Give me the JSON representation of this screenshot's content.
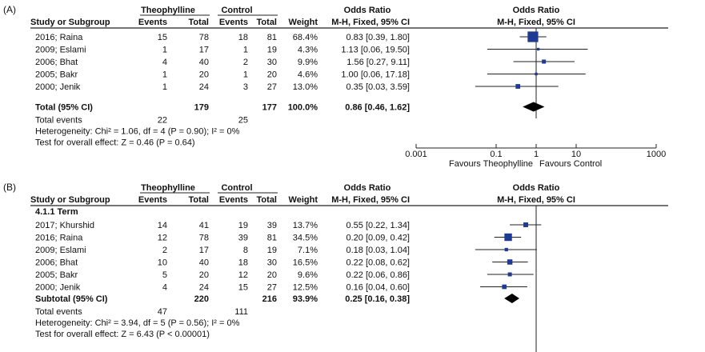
{
  "colors": {
    "text": "#111111",
    "line": "#222222",
    "marker": "#1f3a93",
    "diamond": "#000000"
  },
  "chart_data": [
    {
      "type": "forest",
      "panel_label": "(A)",
      "header": {
        "group1": "Theophylline",
        "group2": "Control",
        "study_col": "Study or Subgroup",
        "events": "Events",
        "total": "Total",
        "weight": "Weight",
        "or_title": "Odds Ratio",
        "or_method": "M-H, Fixed, 95% CI",
        "plot_title": "Odds Ratio",
        "plot_method": "M-H, Fixed, 95% CI"
      },
      "subgroup_label": "",
      "studies": [
        {
          "name": "2016; Raina",
          "e1": "15",
          "t1": "78",
          "e2": "18",
          "t2": "81",
          "weight": "68.4%",
          "ci_text": "0.83 [0.39, 1.80]",
          "or": 0.83,
          "lo": 0.39,
          "hi": 1.8,
          "w": 68.4
        },
        {
          "name": "2009; Eslami",
          "e1": "1",
          "t1": "17",
          "e2": "1",
          "t2": "19",
          "weight": "4.3%",
          "ci_text": "1.13 [0.06, 19.50]",
          "or": 1.13,
          "lo": 0.06,
          "hi": 19.5,
          "w": 4.3
        },
        {
          "name": "2006; Bhat",
          "e1": "4",
          "t1": "40",
          "e2": "2",
          "t2": "30",
          "weight": "9.9%",
          "ci_text": "1.56 [0.27, 9.11]",
          "or": 1.56,
          "lo": 0.27,
          "hi": 9.11,
          "w": 9.9
        },
        {
          "name": "2005; Bakr",
          "e1": "1",
          "t1": "20",
          "e2": "1",
          "t2": "20",
          "weight": "4.6%",
          "ci_text": "1.00 [0.06, 17.18]",
          "or": 1.0,
          "lo": 0.06,
          "hi": 17.18,
          "w": 4.6
        },
        {
          "name": "2000; Jenik",
          "e1": "1",
          "t1": "24",
          "e2": "3",
          "t2": "27",
          "weight": "13.0%",
          "ci_text": "0.35 [0.03, 3.59]",
          "or": 0.35,
          "lo": 0.03,
          "hi": 3.59,
          "w": 13.0
        }
      ],
      "total": {
        "label": "Total (95% CI)",
        "t1": "179",
        "t2": "177",
        "weight": "100.0%",
        "ci_text": "0.86 [0.46, 1.62]",
        "or": 0.86,
        "lo": 0.46,
        "hi": 1.62
      },
      "events": {
        "label": "Total events",
        "e1": "22",
        "e2": "25"
      },
      "heterogeneity": "Heterogeneity: Chi² = 1.06, df = 4 (P = 0.90); I² = 0%",
      "overall": "Test for overall effect: Z = 0.46 (P = 0.64)",
      "axis": {
        "scale": "log",
        "range": [
          0.001,
          1000
        ],
        "ticks": [
          0.001,
          0.1,
          1,
          10,
          1000
        ],
        "tick_labels": [
          "0.001",
          "0.1",
          "1",
          "10",
          "1000"
        ],
        "left_label": "Favours Theophylline",
        "right_label": "Favours Control"
      }
    },
    {
      "type": "forest",
      "panel_label": "(B)",
      "header": {
        "group1": "Theophylline",
        "group2": "Control",
        "study_col": "Study or Subgroup",
        "events": "Events",
        "total": "Total",
        "weight": "Weight",
        "or_title": "Odds Ratio",
        "or_method": "M-H, Fixed, 95% CI",
        "plot_title": "Odds Ratio",
        "plot_method": "M-H, Fixed, 95% CI"
      },
      "subgroup_label": "4.1.1 Term",
      "studies": [
        {
          "name": "2017; Khurshid",
          "e1": "14",
          "t1": "41",
          "e2": "19",
          "t2": "39",
          "weight": "13.7%",
          "ci_text": "0.55 [0.22, 1.34]",
          "or": 0.55,
          "lo": 0.22,
          "hi": 1.34,
          "w": 13.7
        },
        {
          "name": "2016; Raina",
          "e1": "12",
          "t1": "78",
          "e2": "39",
          "t2": "81",
          "weight": "34.5%",
          "ci_text": "0.20 [0.09, 0.42]",
          "or": 0.2,
          "lo": 0.09,
          "hi": 0.42,
          "w": 34.5
        },
        {
          "name": "2009; Eslami",
          "e1": "2",
          "t1": "17",
          "e2": "8",
          "t2": "19",
          "weight": "7.1%",
          "ci_text": "0.18 [0.03, 1.04]",
          "or": 0.18,
          "lo": 0.03,
          "hi": 1.04,
          "w": 7.1
        },
        {
          "name": "2006; Bhat",
          "e1": "10",
          "t1": "40",
          "e2": "18",
          "t2": "30",
          "weight": "16.5%",
          "ci_text": "0.22 [0.08, 0.62]",
          "or": 0.22,
          "lo": 0.08,
          "hi": 0.62,
          "w": 16.5
        },
        {
          "name": "2005; Bakr",
          "e1": "5",
          "t1": "20",
          "e2": "12",
          "t2": "20",
          "weight": "9.6%",
          "ci_text": "0.22 [0.06, 0.86]",
          "or": 0.22,
          "lo": 0.06,
          "hi": 0.86,
          "w": 9.6
        },
        {
          "name": "2000; Jenik",
          "e1": "4",
          "t1": "24",
          "e2": "15",
          "t2": "27",
          "weight": "12.5%",
          "ci_text": "0.16 [0.04, 0.60]",
          "or": 0.16,
          "lo": 0.04,
          "hi": 0.6,
          "w": 12.5
        }
      ],
      "total": {
        "label": "Subtotal (95% CI)",
        "t1": "220",
        "t2": "216",
        "weight": "93.9%",
        "ci_text": "0.25 [0.16, 0.38]",
        "or": 0.25,
        "lo": 0.16,
        "hi": 0.38
      },
      "events": {
        "label": "Total events",
        "e1": "47",
        "e2": "111"
      },
      "heterogeneity": "Heterogeneity: Chi² = 3.94, df = 5 (P = 0.56); I² = 0%",
      "overall": "Test for overall effect: Z = 6.43 (P < 0.00001)",
      "axis": {
        "scale": "log",
        "range": [
          0.001,
          1000
        ],
        "ticks": [],
        "tick_labels": [],
        "left_label": "",
        "right_label": ""
      }
    }
  ]
}
